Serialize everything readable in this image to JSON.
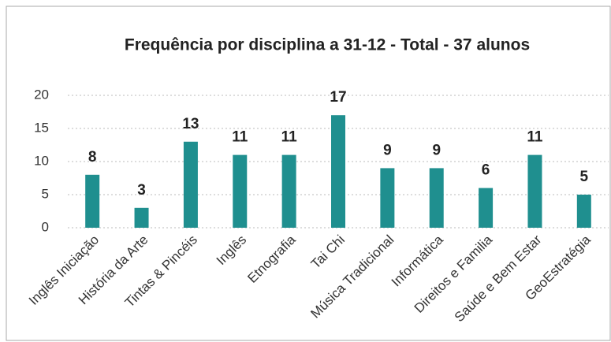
{
  "chart_data": {
    "type": "bar",
    "title": "Frequência por disciplina a 31-12 - Total - 37 alunos",
    "categories": [
      "Inglês Iniciação",
      "História da Arte",
      "Tintas & Pincéis",
      "Inglês",
      "Etnografia",
      "Tai Chi",
      "Música Tradicional",
      "Informática",
      "Direitos e Familia",
      "Saúde e Bem Estar",
      "GeoEstratégia"
    ],
    "values": [
      8,
      3,
      13,
      11,
      11,
      17,
      9,
      9,
      6,
      11,
      5
    ],
    "color": "#1f8f8f",
    "ylim": [
      0,
      20
    ],
    "yticks": [
      0,
      5,
      10,
      15,
      20
    ],
    "grid": true
  }
}
